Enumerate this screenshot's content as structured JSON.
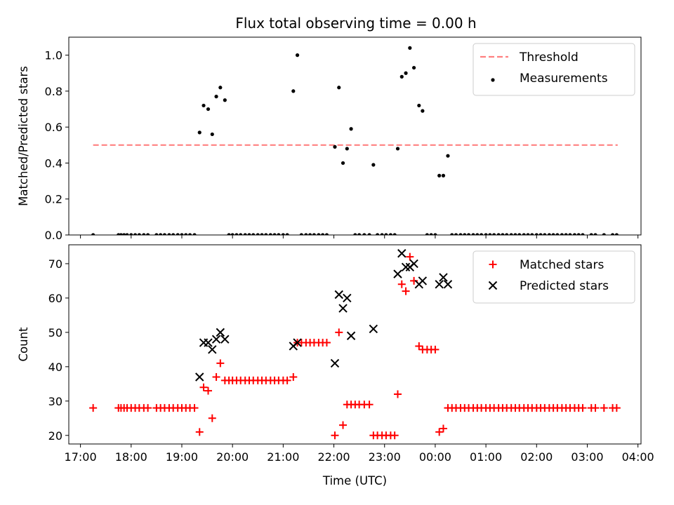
{
  "title": "Flux total observing time = 0.00 h",
  "colors": {
    "threshold": "#ff8080",
    "measurements": "#000000",
    "matched": "#ff0000",
    "predicted": "#000000",
    "axes": "#000000"
  },
  "chart_data": [
    {
      "type": "scatter",
      "panel": "top",
      "xlabel": "",
      "ylabel": "Matched/Predicted stars",
      "x_unit": "hours since 17:00 UTC (continuing past midnight)",
      "xlim": [
        16.77,
        28.06
      ],
      "ylim": [
        0.0,
        1.1
      ],
      "yticks": [
        0.0,
        0.2,
        0.4,
        0.6,
        0.8,
        1.0
      ],
      "ytick_labels": [
        "0.0",
        "0.2",
        "0.4",
        "0.6",
        "0.8",
        "1.0"
      ],
      "legend_position": "top-right",
      "threshold": {
        "name": "Threshold",
        "value": 0.5,
        "x_range": [
          17.25,
          27.6
        ],
        "style": "dashed"
      },
      "series": [
        {
          "name": "Measurements",
          "marker": "dot",
          "points": [
            [
              17.25,
              0
            ],
            [
              17.75,
              0
            ],
            [
              17.8,
              0
            ],
            [
              17.86,
              0
            ],
            [
              17.92,
              0
            ],
            [
              18.0,
              0
            ],
            [
              18.08,
              0
            ],
            [
              18.16,
              0
            ],
            [
              18.25,
              0
            ],
            [
              18.33,
              0
            ],
            [
              18.5,
              0
            ],
            [
              18.58,
              0
            ],
            [
              18.66,
              0
            ],
            [
              18.75,
              0
            ],
            [
              18.83,
              0
            ],
            [
              18.92,
              0
            ],
            [
              19.0,
              0
            ],
            [
              19.08,
              0
            ],
            [
              19.16,
              0
            ],
            [
              19.25,
              0
            ],
            [
              19.35,
              0.57
            ],
            [
              19.43,
              0.72
            ],
            [
              19.52,
              0.7
            ],
            [
              19.6,
              0.56
            ],
            [
              19.68,
              0.77
            ],
            [
              19.76,
              0.82
            ],
            [
              19.85,
              0.75
            ],
            [
              19.93,
              0
            ],
            [
              20.0,
              0
            ],
            [
              20.08,
              0
            ],
            [
              20.16,
              0
            ],
            [
              20.25,
              0
            ],
            [
              20.33,
              0
            ],
            [
              20.41,
              0
            ],
            [
              20.5,
              0
            ],
            [
              20.58,
              0
            ],
            [
              20.66,
              0
            ],
            [
              20.75,
              0
            ],
            [
              20.83,
              0
            ],
            [
              20.91,
              0
            ],
            [
              21.0,
              0
            ],
            [
              21.08,
              0
            ],
            [
              21.2,
              0.8
            ],
            [
              21.28,
              1.0
            ],
            [
              21.36,
              0
            ],
            [
              21.45,
              0
            ],
            [
              21.53,
              0
            ],
            [
              21.61,
              0
            ],
            [
              21.7,
              0
            ],
            [
              21.78,
              0
            ],
            [
              21.86,
              0
            ],
            [
              22.02,
              0.49
            ],
            [
              22.1,
              0.82
            ],
            [
              22.18,
              0.4
            ],
            [
              22.26,
              0.48
            ],
            [
              22.34,
              0.59
            ],
            [
              22.42,
              0
            ],
            [
              22.5,
              0
            ],
            [
              22.6,
              0
            ],
            [
              22.7,
              0
            ],
            [
              22.78,
              0.39
            ],
            [
              22.86,
              0
            ],
            [
              22.95,
              0
            ],
            [
              23.03,
              0
            ],
            [
              23.12,
              0
            ],
            [
              23.2,
              0
            ],
            [
              23.26,
              0.48
            ],
            [
              23.34,
              0.88
            ],
            [
              23.42,
              0.9
            ],
            [
              23.5,
              1.04
            ],
            [
              23.58,
              0.93
            ],
            [
              23.68,
              0.72
            ],
            [
              23.75,
              0.69
            ],
            [
              23.84,
              0
            ],
            [
              23.92,
              0
            ],
            [
              24.0,
              0
            ],
            [
              24.08,
              0.33
            ],
            [
              24.16,
              0.33
            ],
            [
              24.25,
              0.44
            ],
            [
              24.33,
              0
            ],
            [
              24.41,
              0
            ],
            [
              24.5,
              0
            ],
            [
              24.58,
              0
            ],
            [
              24.66,
              0
            ],
            [
              24.75,
              0
            ],
            [
              24.83,
              0
            ],
            [
              24.91,
              0
            ],
            [
              25.0,
              0
            ],
            [
              25.08,
              0
            ],
            [
              25.16,
              0
            ],
            [
              25.25,
              0
            ],
            [
              25.33,
              0
            ],
            [
              25.41,
              0
            ],
            [
              25.5,
              0
            ],
            [
              25.58,
              0
            ],
            [
              25.66,
              0
            ],
            [
              25.75,
              0
            ],
            [
              25.83,
              0
            ],
            [
              25.91,
              0
            ],
            [
              26.0,
              0
            ],
            [
              26.08,
              0
            ],
            [
              26.16,
              0
            ],
            [
              26.25,
              0
            ],
            [
              26.33,
              0
            ],
            [
              26.41,
              0
            ],
            [
              26.5,
              0
            ],
            [
              26.58,
              0
            ],
            [
              26.66,
              0
            ],
            [
              26.75,
              0
            ],
            [
              26.83,
              0
            ],
            [
              26.91,
              0
            ],
            [
              27.08,
              0
            ],
            [
              27.16,
              0
            ],
            [
              27.33,
              0
            ],
            [
              27.5,
              0
            ],
            [
              27.58,
              0
            ]
          ]
        }
      ]
    },
    {
      "type": "scatter",
      "panel": "bottom",
      "xlabel": "Time (UTC)",
      "ylabel": "Count",
      "x_unit": "hours since 17:00 UTC (continuing past midnight)",
      "xlim": [
        16.77,
        28.06
      ],
      "ylim": [
        17.5,
        75.5
      ],
      "yticks": [
        20,
        30,
        40,
        50,
        60,
        70
      ],
      "ytick_labels": [
        "20",
        "30",
        "40",
        "50",
        "60",
        "70"
      ],
      "xticks": [
        17,
        18,
        19,
        20,
        21,
        22,
        23,
        24,
        25,
        26,
        27,
        28
      ],
      "xtick_labels": [
        "17:00",
        "18:00",
        "19:00",
        "20:00",
        "21:00",
        "22:00",
        "23:00",
        "00:00",
        "01:00",
        "02:00",
        "03:00",
        "04:00"
      ],
      "legend_position": "top-right",
      "series": [
        {
          "name": "Matched stars",
          "marker": "plus",
          "points": [
            [
              17.25,
              28
            ],
            [
              17.75,
              28
            ],
            [
              17.8,
              28
            ],
            [
              17.86,
              28
            ],
            [
              17.92,
              28
            ],
            [
              18.0,
              28
            ],
            [
              18.08,
              28
            ],
            [
              18.16,
              28
            ],
            [
              18.25,
              28
            ],
            [
              18.33,
              28
            ],
            [
              18.5,
              28
            ],
            [
              18.58,
              28
            ],
            [
              18.66,
              28
            ],
            [
              18.75,
              28
            ],
            [
              18.83,
              28
            ],
            [
              18.92,
              28
            ],
            [
              19.0,
              28
            ],
            [
              19.08,
              28
            ],
            [
              19.16,
              28
            ],
            [
              19.25,
              28
            ],
            [
              19.35,
              21
            ],
            [
              19.43,
              34
            ],
            [
              19.52,
              33
            ],
            [
              19.6,
              25
            ],
            [
              19.68,
              37
            ],
            [
              19.76,
              41
            ],
            [
              19.85,
              36
            ],
            [
              19.93,
              36
            ],
            [
              20.0,
              36
            ],
            [
              20.08,
              36
            ],
            [
              20.16,
              36
            ],
            [
              20.25,
              36
            ],
            [
              20.33,
              36
            ],
            [
              20.41,
              36
            ],
            [
              20.5,
              36
            ],
            [
              20.58,
              36
            ],
            [
              20.66,
              36
            ],
            [
              20.75,
              36
            ],
            [
              20.83,
              36
            ],
            [
              20.91,
              36
            ],
            [
              21.0,
              36
            ],
            [
              21.08,
              36
            ],
            [
              21.2,
              37
            ],
            [
              21.28,
              47
            ],
            [
              21.36,
              47
            ],
            [
              21.45,
              47
            ],
            [
              21.53,
              47
            ],
            [
              21.61,
              47
            ],
            [
              21.7,
              47
            ],
            [
              21.78,
              47
            ],
            [
              21.86,
              47
            ],
            [
              22.02,
              20
            ],
            [
              22.1,
              50
            ],
            [
              22.18,
              23
            ],
            [
              22.26,
              29
            ],
            [
              22.34,
              29
            ],
            [
              22.42,
              29
            ],
            [
              22.5,
              29
            ],
            [
              22.6,
              29
            ],
            [
              22.7,
              29
            ],
            [
              22.78,
              20
            ],
            [
              22.86,
              20
            ],
            [
              22.95,
              20
            ],
            [
              23.03,
              20
            ],
            [
              23.12,
              20
            ],
            [
              23.2,
              20
            ],
            [
              23.26,
              32
            ],
            [
              23.34,
              64
            ],
            [
              23.42,
              62
            ],
            [
              23.5,
              72
            ],
            [
              23.58,
              65
            ],
            [
              23.68,
              46
            ],
            [
              23.75,
              45
            ],
            [
              23.84,
              45
            ],
            [
              23.92,
              45
            ],
            [
              24.0,
              45
            ],
            [
              24.08,
              21
            ],
            [
              24.16,
              22
            ],
            [
              24.25,
              28
            ],
            [
              24.33,
              28
            ],
            [
              24.41,
              28
            ],
            [
              24.5,
              28
            ],
            [
              24.58,
              28
            ],
            [
              24.66,
              28
            ],
            [
              24.75,
              28
            ],
            [
              24.83,
              28
            ],
            [
              24.91,
              28
            ],
            [
              25.0,
              28
            ],
            [
              25.08,
              28
            ],
            [
              25.16,
              28
            ],
            [
              25.25,
              28
            ],
            [
              25.33,
              28
            ],
            [
              25.41,
              28
            ],
            [
              25.5,
              28
            ],
            [
              25.58,
              28
            ],
            [
              25.66,
              28
            ],
            [
              25.75,
              28
            ],
            [
              25.83,
              28
            ],
            [
              25.91,
              28
            ],
            [
              26.0,
              28
            ],
            [
              26.08,
              28
            ],
            [
              26.16,
              28
            ],
            [
              26.25,
              28
            ],
            [
              26.33,
              28
            ],
            [
              26.41,
              28
            ],
            [
              26.5,
              28
            ],
            [
              26.58,
              28
            ],
            [
              26.66,
              28
            ],
            [
              26.75,
              28
            ],
            [
              26.83,
              28
            ],
            [
              26.91,
              28
            ],
            [
              27.08,
              28
            ],
            [
              27.16,
              28
            ],
            [
              27.33,
              28
            ],
            [
              27.5,
              28
            ],
            [
              27.58,
              28
            ]
          ]
        },
        {
          "name": "Predicted stars",
          "marker": "x",
          "points": [
            [
              19.35,
              37
            ],
            [
              19.43,
              47
            ],
            [
              19.52,
              47
            ],
            [
              19.6,
              45
            ],
            [
              19.68,
              48
            ],
            [
              19.76,
              50
            ],
            [
              19.85,
              48
            ],
            [
              21.2,
              46
            ],
            [
              21.28,
              47
            ],
            [
              22.02,
              41
            ],
            [
              22.1,
              61
            ],
            [
              22.18,
              57
            ],
            [
              22.26,
              60
            ],
            [
              22.34,
              49
            ],
            [
              22.78,
              51
            ],
            [
              23.26,
              67
            ],
            [
              23.34,
              73
            ],
            [
              23.42,
              69
            ],
            [
              23.5,
              69
            ],
            [
              23.58,
              70
            ],
            [
              23.68,
              64
            ],
            [
              23.75,
              65
            ],
            [
              24.08,
              64
            ],
            [
              24.16,
              66
            ],
            [
              24.25,
              64
            ]
          ]
        }
      ]
    }
  ]
}
